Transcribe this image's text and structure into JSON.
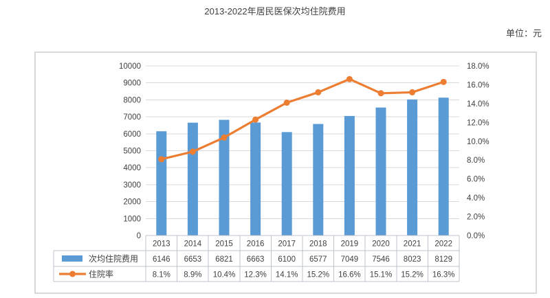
{
  "title": "2013-2022年居民医保次均住院费用",
  "unit_label": "单位：元",
  "chart_data": {
    "type": "bar+line",
    "title": "2013-2022年居民医保次均住院费用",
    "categories": [
      "2013",
      "2014",
      "2015",
      "2016",
      "2017",
      "2018",
      "2019",
      "2020",
      "2021",
      "2022"
    ],
    "series": [
      {
        "name": "次均住院费用",
        "type": "bar",
        "axis": "left",
        "color": "#5B9BD5",
        "values": [
          6146,
          6653,
          6821,
          6663,
          6100,
          6577,
          7049,
          7546,
          8023,
          8129
        ],
        "display": [
          "6146",
          "6653",
          "6821",
          "6663",
          "6100",
          "6577",
          "7049",
          "7546",
          "8023",
          "8129"
        ]
      },
      {
        "name": "住院率",
        "type": "line",
        "axis": "right",
        "color": "#ED7D31",
        "values": [
          8.1,
          8.9,
          10.4,
          12.3,
          14.1,
          15.2,
          16.6,
          15.1,
          15.2,
          16.3
        ],
        "display": [
          "8.1%",
          "8.9%",
          "10.4%",
          "12.3%",
          "14.1%",
          "15.2%",
          "16.6%",
          "15.1%",
          "15.2%",
          "16.3%"
        ]
      }
    ],
    "left_axis": {
      "min": 0,
      "max": 10000,
      "step": 1000,
      "tick_labels": [
        "0",
        "1000",
        "2000",
        "3000",
        "4000",
        "5000",
        "6000",
        "7000",
        "8000",
        "9000",
        "10000"
      ]
    },
    "right_axis": {
      "min": 0,
      "max": 18,
      "step": 2,
      "tick_labels": [
        "0.0%",
        "2.0%",
        "4.0%",
        "6.0%",
        "8.0%",
        "10.0%",
        "12.0%",
        "14.0%",
        "16.0%",
        "18.0%"
      ]
    },
    "grid": true,
    "legend_position": "data-table-left",
    "colors": {
      "bar": "#5B9BD5",
      "line": "#ED7D31",
      "grid": "#d9d9d9",
      "frame_border": "#d9d9d9",
      "table_border": "#bcc3cb",
      "text": "#404040"
    }
  }
}
